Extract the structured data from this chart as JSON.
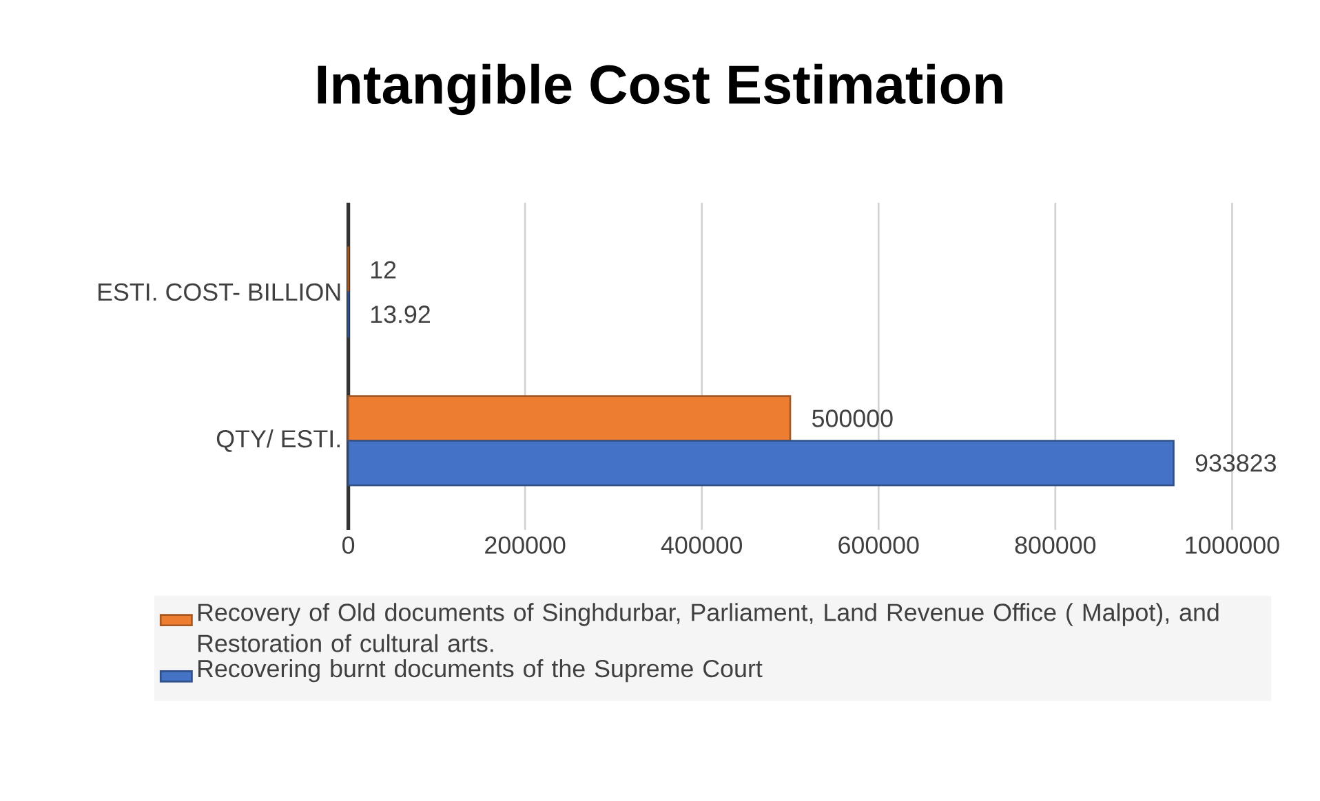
{
  "chart_data": {
    "type": "bar",
    "orientation": "horizontal",
    "title": "Intangible Cost Estimation",
    "categories": [
      "ESTI. COST- BILLION",
      "QTY/ ESTI."
    ],
    "series": [
      {
        "name": "Recovery of Old documents of Singhdurbar, Parliament, Land Revenue Office ( Malpot), and Restoration of cultural arts.",
        "color": "#ed7d31",
        "values": [
          12,
          500000
        ]
      },
      {
        "name": "Recovering burnt documents of the Supreme Court",
        "color": "#4472c4",
        "values": [
          13.92,
          933823
        ]
      }
    ],
    "xlim": [
      0,
      1000000
    ],
    "xticks": [
      0,
      200000,
      400000,
      600000,
      800000,
      1000000
    ],
    "grid": "x",
    "legend": "bottom",
    "data_labels": true
  }
}
